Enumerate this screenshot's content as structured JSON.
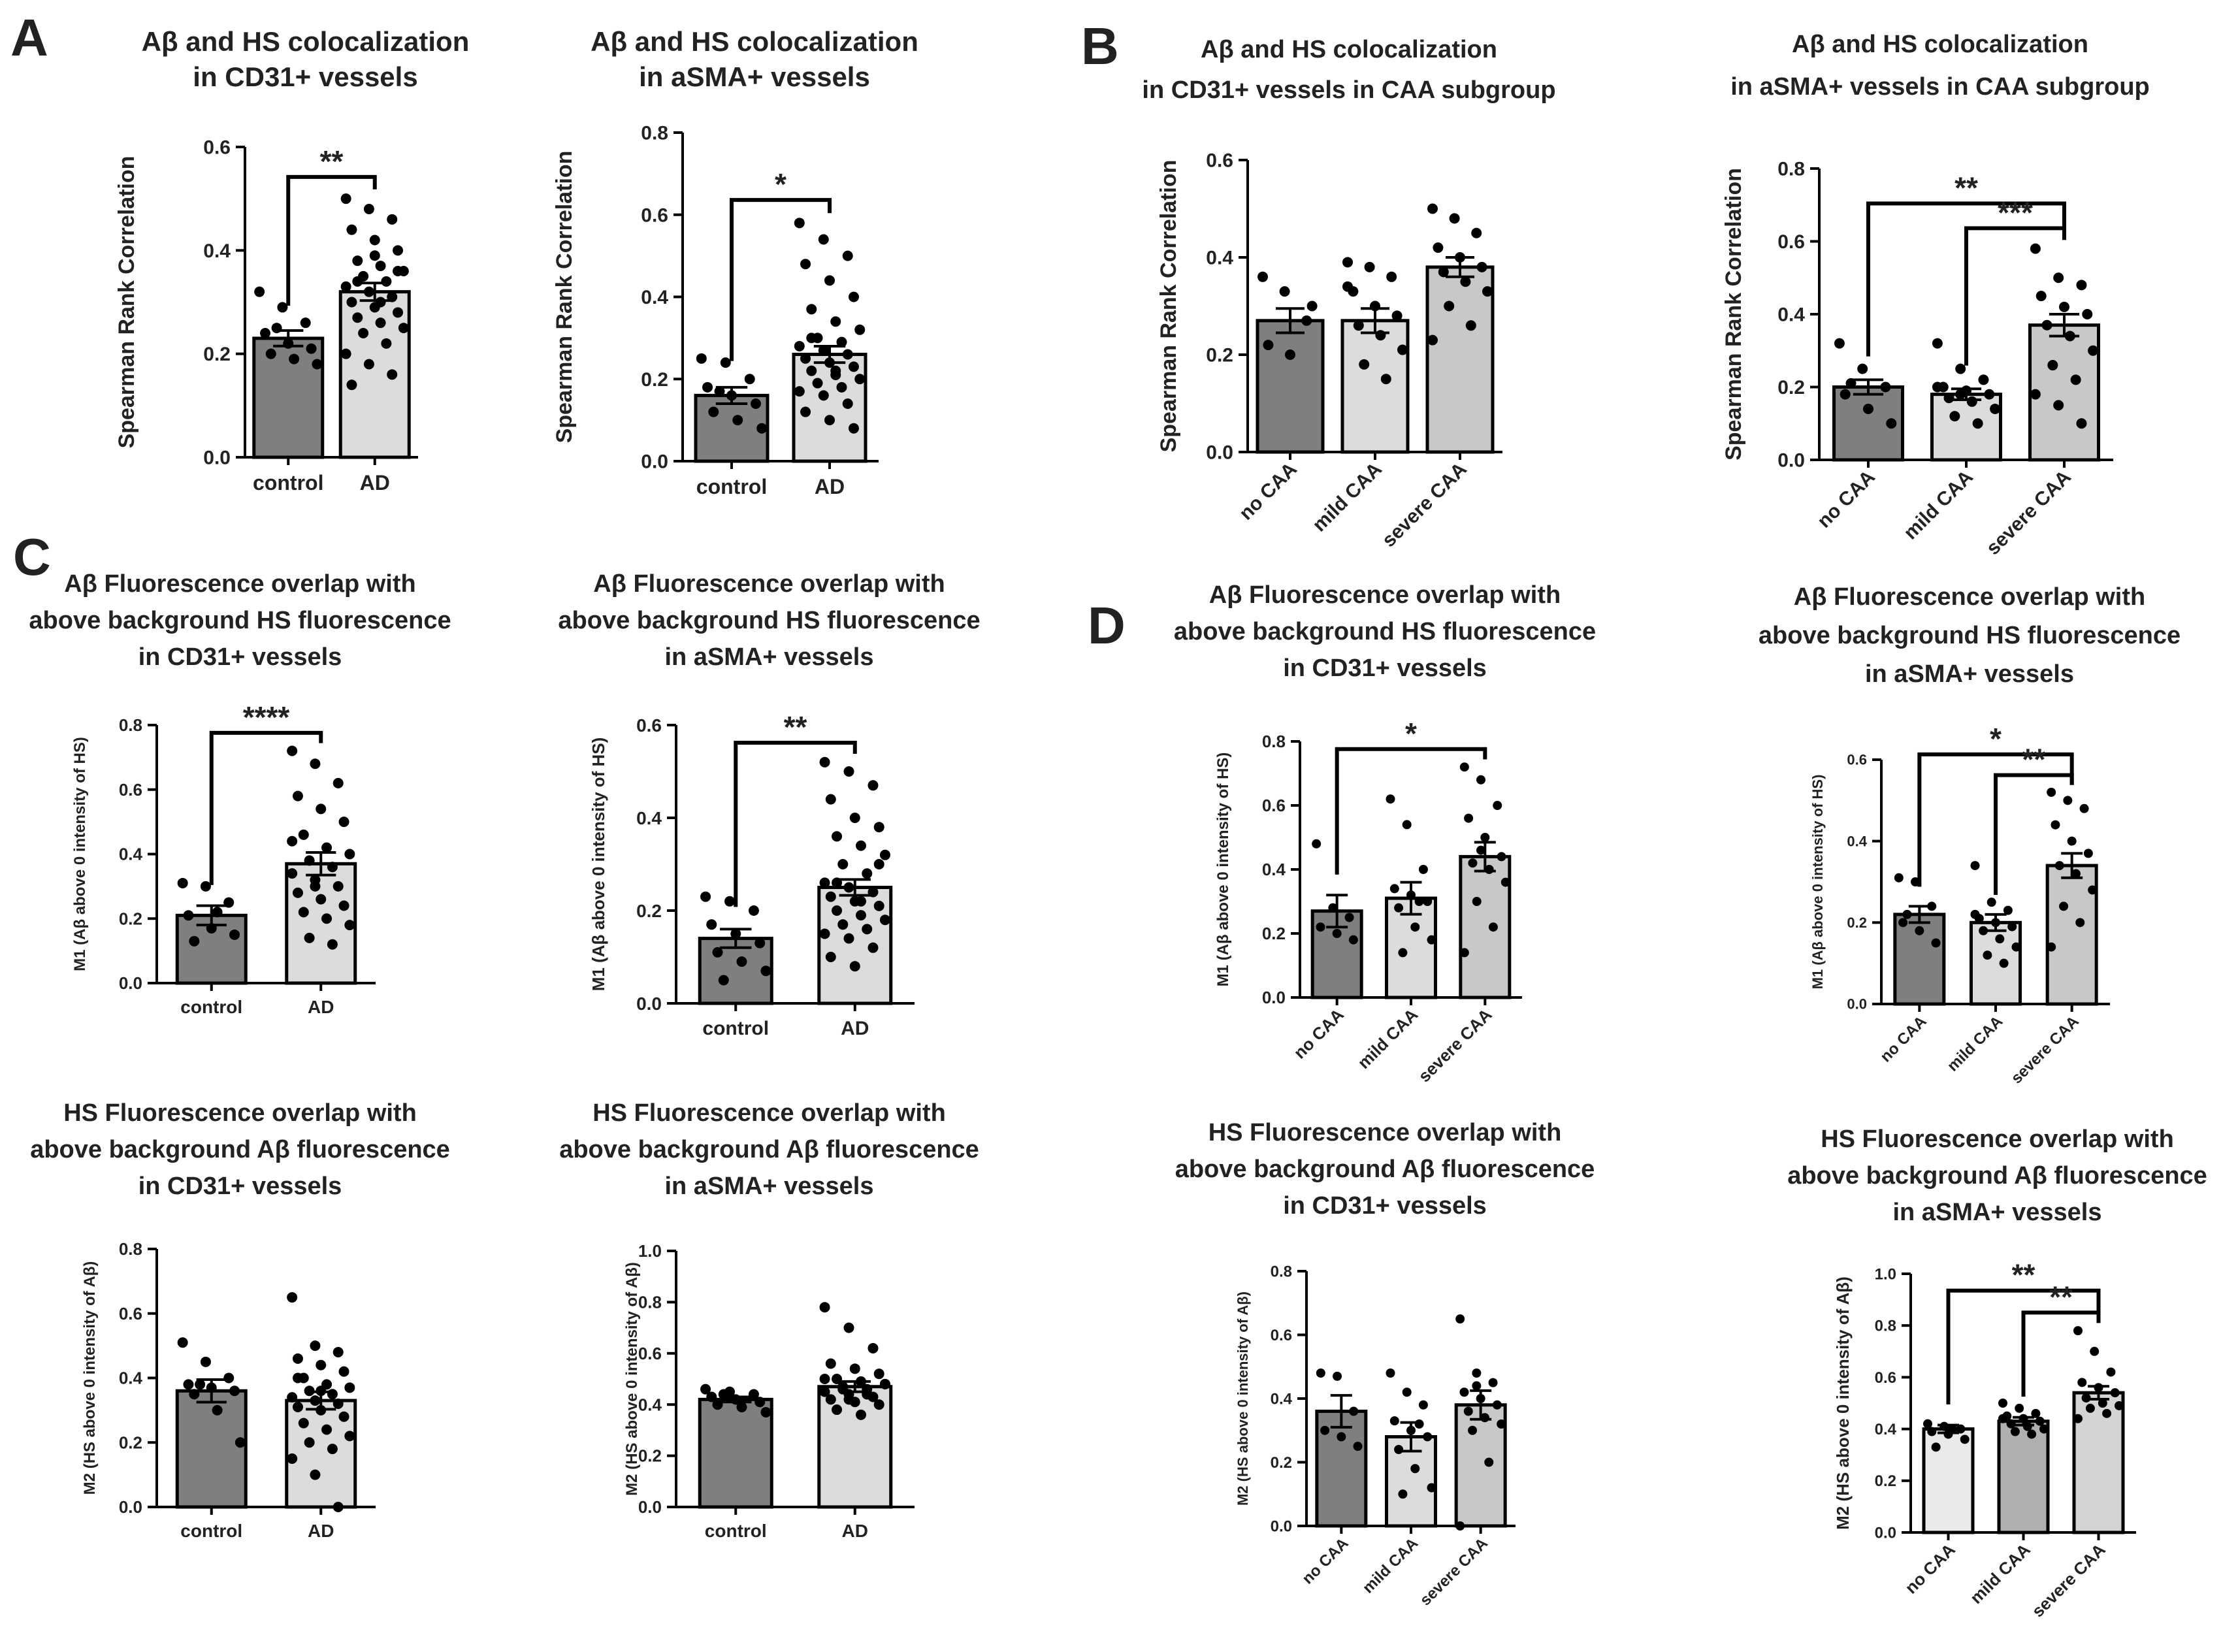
{
  "figure": {
    "panel_labels": [
      "A",
      "B",
      "C",
      "D"
    ]
  },
  "chart_data": [
    {
      "id": "a1",
      "type": "bar",
      "title": [
        "Aβ and HS colocalization",
        "in CD31+ vessels"
      ],
      "ylabel": "Spearman Rank Correlation",
      "categories": [
        "control",
        "AD"
      ],
      "values": [
        0.23,
        0.32
      ],
      "sem": [
        0.015,
        0.017
      ],
      "colors": [
        "#7f7f7f",
        "#dcdcdc"
      ],
      "ylim": [
        0,
        0.6
      ],
      "ticks": [
        0.0,
        0.2,
        0.4,
        0.6
      ],
      "tick_labels": [
        "0.0",
        "0.2",
        "0.4",
        "0.6"
      ],
      "points": [
        [
          0.32,
          0.29,
          0.26,
          0.24,
          0.22,
          0.21,
          0.2,
          0.19,
          0.18,
          0.25
        ],
        [
          0.5,
          0.48,
          0.46,
          0.44,
          0.42,
          0.4,
          0.38,
          0.37,
          0.36,
          0.35,
          0.34,
          0.33,
          0.32,
          0.31,
          0.3,
          0.29,
          0.28,
          0.27,
          0.26,
          0.25,
          0.24,
          0.22,
          0.2,
          0.18,
          0.16,
          0.14,
          0.39,
          0.36,
          0.34,
          0.3
        ]
      ],
      "significance": [
        {
          "from": 0,
          "to": 1,
          "label": "**"
        }
      ]
    },
    {
      "id": "a2",
      "type": "bar",
      "title": [
        "Aβ and HS colocalization",
        "in aSMA+ vessels"
      ],
      "ylabel": "Spearman Rank Correlation",
      "categories": [
        "control",
        "AD"
      ],
      "values": [
        0.16,
        0.26
      ],
      "sem": [
        0.02,
        0.02
      ],
      "colors": [
        "#7f7f7f",
        "#dcdcdc"
      ],
      "ylim": [
        0,
        0.8
      ],
      "ticks": [
        0.0,
        0.2,
        0.4,
        0.6,
        0.8
      ],
      "tick_labels": [
        "0.0",
        "0.2",
        "0.4",
        "0.6",
        "0.8"
      ],
      "points": [
        [
          0.25,
          0.24,
          0.2,
          0.18,
          0.16,
          0.14,
          0.12,
          0.1,
          0.08,
          0.17
        ],
        [
          0.58,
          0.54,
          0.5,
          0.48,
          0.44,
          0.4,
          0.37,
          0.34,
          0.32,
          0.3,
          0.29,
          0.28,
          0.27,
          0.26,
          0.25,
          0.24,
          0.23,
          0.22,
          0.21,
          0.2,
          0.19,
          0.18,
          0.17,
          0.16,
          0.14,
          0.12,
          0.1,
          0.08,
          0.3,
          0.22
        ]
      ],
      "significance": [
        {
          "from": 0,
          "to": 1,
          "label": "*"
        }
      ]
    },
    {
      "id": "b1",
      "type": "bar",
      "title": [
        "Aβ and HS colocalization",
        "in CD31+ vessels in CAA subgroup"
      ],
      "ylabel": "Spearman Rank Correlation",
      "categories": [
        "no CAA",
        "mild CAA",
        "severe CAA"
      ],
      "values": [
        0.27,
        0.27,
        0.38
      ],
      "sem": [
        0.025,
        0.025,
        0.02
      ],
      "colors": [
        "#7f7f7f",
        "#dcdcdc",
        "#c8c8c8"
      ],
      "ylim": [
        0,
        0.6
      ],
      "ticks": [
        0.0,
        0.2,
        0.4,
        0.6
      ],
      "tick_labels": [
        "0.0",
        "0.2",
        "0.4",
        "0.6"
      ],
      "points": [
        [
          0.36,
          0.33,
          0.27,
          0.22,
          0.2,
          0.3
        ],
        [
          0.39,
          0.38,
          0.36,
          0.33,
          0.3,
          0.28,
          0.26,
          0.24,
          0.21,
          0.18,
          0.15,
          0.34
        ],
        [
          0.5,
          0.48,
          0.45,
          0.42,
          0.4,
          0.38,
          0.37,
          0.35,
          0.33,
          0.3,
          0.26,
          0.23
        ]
      ],
      "significance": []
    },
    {
      "id": "b2",
      "type": "bar",
      "title": [
        "Aβ and HS colocalization",
        "in aSMA+ vessels in CAA subgroup"
      ],
      "ylabel": "Spearman Rank Correlation",
      "categories": [
        "no CAA",
        "mild CAA",
        "severe CAA"
      ],
      "values": [
        0.2,
        0.18,
        0.37
      ],
      "sem": [
        0.02,
        0.015,
        0.03
      ],
      "colors": [
        "#7f7f7f",
        "#dcdcdc",
        "#c8c8c8"
      ],
      "ylim": [
        0,
        0.8
      ],
      "ticks": [
        0.0,
        0.2,
        0.4,
        0.6,
        0.8
      ],
      "tick_labels": [
        "0.0",
        "0.2",
        "0.4",
        "0.6",
        "0.8"
      ],
      "points": [
        [
          0.32,
          0.25,
          0.2,
          0.18,
          0.14,
          0.1,
          0.21
        ],
        [
          0.32,
          0.25,
          0.22,
          0.2,
          0.19,
          0.18,
          0.17,
          0.16,
          0.14,
          0.12,
          0.1,
          0.2,
          0.18
        ],
        [
          0.58,
          0.5,
          0.48,
          0.45,
          0.42,
          0.4,
          0.37,
          0.34,
          0.3,
          0.26,
          0.22,
          0.18,
          0.15,
          0.1
        ]
      ],
      "significance": [
        {
          "from": 0,
          "to": 2,
          "label": "**"
        },
        {
          "from": 1,
          "to": 2,
          "label": "***"
        }
      ]
    },
    {
      "id": "c1",
      "type": "bar",
      "title": [
        "Aβ Fluorescence overlap with",
        "above background HS fluorescence",
        "in CD31+ vessels"
      ],
      "ylabel": "M1 (Aβ above 0 intensity of HS)",
      "categories": [
        "control",
        "AD"
      ],
      "values": [
        0.21,
        0.37
      ],
      "sem": [
        0.03,
        0.035
      ],
      "colors": [
        "#7f7f7f",
        "#dcdcdc"
      ],
      "ylim": [
        0,
        0.8
      ],
      "ticks": [
        0.0,
        0.2,
        0.4,
        0.6,
        0.8
      ],
      "tick_labels": [
        "0.0",
        "0.2",
        "0.4",
        "0.6",
        "0.8"
      ],
      "points": [
        [
          0.31,
          0.3,
          0.25,
          0.21,
          0.17,
          0.15,
          0.13,
          0.22
        ],
        [
          0.72,
          0.68,
          0.62,
          0.58,
          0.54,
          0.5,
          0.46,
          0.42,
          0.4,
          0.38,
          0.36,
          0.34,
          0.32,
          0.3,
          0.28,
          0.26,
          0.24,
          0.22,
          0.2,
          0.18,
          0.14,
          0.12,
          0.44,
          0.3
        ]
      ],
      "significance": [
        {
          "from": 0,
          "to": 1,
          "label": "****"
        }
      ]
    },
    {
      "id": "c2",
      "type": "bar",
      "title": [
        "Aβ Fluorescence overlap with",
        "above background HS fluorescence",
        "in aSMA+ vessels"
      ],
      "ylabel": "M1 (Aβ above 0 intensity of HS)",
      "categories": [
        "control",
        "AD"
      ],
      "values": [
        0.14,
        0.25
      ],
      "sem": [
        0.02,
        0.017
      ],
      "colors": [
        "#7f7f7f",
        "#dcdcdc"
      ],
      "ylim": [
        0,
        0.6
      ],
      "ticks": [
        0.0,
        0.2,
        0.4,
        0.6
      ],
      "tick_labels": [
        "0.0",
        "0.2",
        "0.4",
        "0.6"
      ],
      "points": [
        [
          0.23,
          0.22,
          0.2,
          0.17,
          0.15,
          0.13,
          0.11,
          0.09,
          0.07,
          0.05
        ],
        [
          0.52,
          0.5,
          0.47,
          0.44,
          0.4,
          0.38,
          0.36,
          0.34,
          0.32,
          0.3,
          0.28,
          0.26,
          0.25,
          0.24,
          0.23,
          0.22,
          0.21,
          0.2,
          0.19,
          0.18,
          0.17,
          0.16,
          0.15,
          0.14,
          0.12,
          0.1,
          0.08,
          0.3,
          0.26,
          0.22
        ]
      ],
      "significance": [
        {
          "from": 0,
          "to": 1,
          "label": "**"
        }
      ]
    },
    {
      "id": "c3",
      "type": "bar",
      "title": [
        "HS Fluorescence overlap with",
        "above background Aβ fluorescence",
        "in CD31+ vessels"
      ],
      "ylabel": "M2 (HS above 0 intensity of Aβ)",
      "categories": [
        "control",
        "AD"
      ],
      "values": [
        0.36,
        0.33
      ],
      "sem": [
        0.035,
        0.027
      ],
      "colors": [
        "#7f7f7f",
        "#dcdcdc"
      ],
      "ylim": [
        0,
        0.8
      ],
      "ticks": [
        0.0,
        0.2,
        0.4,
        0.6,
        0.8
      ],
      "tick_labels": [
        "0.0",
        "0.2",
        "0.4",
        "0.6",
        "0.8"
      ],
      "points": [
        [
          0.51,
          0.45,
          0.4,
          0.38,
          0.37,
          0.36,
          0.35,
          0.3,
          0.2,
          0.38
        ],
        [
          0.65,
          0.5,
          0.48,
          0.46,
          0.44,
          0.42,
          0.4,
          0.38,
          0.37,
          0.36,
          0.35,
          0.34,
          0.33,
          0.32,
          0.31,
          0.3,
          0.28,
          0.26,
          0.24,
          0.22,
          0.2,
          0.18,
          0.15,
          0.1,
          0.0,
          0.4,
          0.36
        ]
      ],
      "significance": []
    },
    {
      "id": "c4",
      "type": "bar",
      "title": [
        "HS Fluorescence overlap with",
        "above background Aβ fluorescence",
        "in aSMA+ vessels"
      ],
      "ylabel": "M2 (HS above 0 intensity of Aβ)",
      "categories": [
        "control",
        "AD"
      ],
      "values": [
        0.42,
        0.47
      ],
      "sem": [
        0.01,
        0.02
      ],
      "colors": [
        "#7f7f7f",
        "#dcdcdc"
      ],
      "ylim": [
        0,
        1.0
      ],
      "ticks": [
        0.0,
        0.2,
        0.4,
        0.6,
        0.8,
        1.0
      ],
      "tick_labels": [
        "0.0",
        "0.2",
        "0.4",
        "0.6",
        "0.8",
        "1.0"
      ],
      "points": [
        [
          0.46,
          0.45,
          0.44,
          0.43,
          0.42,
          0.41,
          0.4,
          0.39,
          0.37,
          0.44
        ],
        [
          0.78,
          0.7,
          0.62,
          0.56,
          0.54,
          0.52,
          0.5,
          0.49,
          0.48,
          0.47,
          0.46,
          0.45,
          0.44,
          0.43,
          0.42,
          0.41,
          0.4,
          0.38,
          0.36,
          0.48,
          0.46,
          0.44,
          0.5,
          0.42
        ]
      ],
      "significance": []
    },
    {
      "id": "d1",
      "type": "bar",
      "title": [
        "Aβ Fluorescence overlap with",
        "above background HS fluorescence",
        "in CD31+ vessels"
      ],
      "ylabel": "M1 (Aβ above 0 intensity of HS)",
      "categories": [
        "no CAA",
        "mild CAA",
        "severe CAA"
      ],
      "values": [
        0.27,
        0.31,
        0.44
      ],
      "sem": [
        0.05,
        0.05,
        0.045
      ],
      "colors": [
        "#7f7f7f",
        "#dcdcdc",
        "#c8c8c8"
      ],
      "ylim": [
        0,
        0.8
      ],
      "ticks": [
        0.0,
        0.2,
        0.4,
        0.6,
        0.8
      ],
      "tick_labels": [
        "0.0",
        "0.2",
        "0.4",
        "0.6",
        "0.8"
      ],
      "points": [
        [
          0.48,
          0.28,
          0.25,
          0.22,
          0.2,
          0.18
        ],
        [
          0.62,
          0.54,
          0.4,
          0.34,
          0.32,
          0.3,
          0.28,
          0.22,
          0.18,
          0.14,
          0.3
        ],
        [
          0.72,
          0.68,
          0.6,
          0.56,
          0.5,
          0.44,
          0.42,
          0.4,
          0.36,
          0.3,
          0.22,
          0.14,
          0.46
        ]
      ],
      "significance": [
        {
          "from": 0,
          "to": 2,
          "label": "*"
        }
      ]
    },
    {
      "id": "d2",
      "type": "bar",
      "title": [
        "Aβ Fluorescence overlap with",
        "above background HS fluorescence",
        "in aSMA+ vessels"
      ],
      "ylabel": "M1 (Aβ above 0 intensity of HS)",
      "categories": [
        "no CAA",
        "mild CAA",
        "severe CAA"
      ],
      "values": [
        0.22,
        0.2,
        0.34
      ],
      "sem": [
        0.02,
        0.02,
        0.03
      ],
      "colors": [
        "#7f7f7f",
        "#dcdcdc",
        "#c8c8c8"
      ],
      "ylim": [
        0,
        0.6
      ],
      "ticks": [
        0.0,
        0.2,
        0.4,
        0.6
      ],
      "tick_labels": [
        "0.0",
        "0.2",
        "0.4",
        "0.6"
      ],
      "points": [
        [
          0.31,
          0.3,
          0.24,
          0.2,
          0.18,
          0.15,
          0.22
        ],
        [
          0.34,
          0.25,
          0.23,
          0.21,
          0.2,
          0.19,
          0.18,
          0.16,
          0.14,
          0.12,
          0.1,
          0.22
        ],
        [
          0.52,
          0.5,
          0.48,
          0.44,
          0.4,
          0.37,
          0.34,
          0.32,
          0.28,
          0.24,
          0.2,
          0.14
        ]
      ],
      "significance": [
        {
          "from": 0,
          "to": 2,
          "label": "*"
        },
        {
          "from": 1,
          "to": 2,
          "label": "**"
        }
      ]
    },
    {
      "id": "d3",
      "type": "bar",
      "title": [
        "HS Fluorescence overlap with",
        "above background Aβ fluorescence",
        "in CD31+ vessels"
      ],
      "ylabel": "M2 (HS above 0 intensity of Aβ)",
      "categories": [
        "no CAA",
        "mild CAA",
        "severe CAA"
      ],
      "values": [
        0.36,
        0.28,
        0.38
      ],
      "sem": [
        0.05,
        0.045,
        0.045
      ],
      "colors": [
        "#7f7f7f",
        "#dcdcdc",
        "#c8c8c8"
      ],
      "ylim": [
        0,
        0.8
      ],
      "ticks": [
        0.0,
        0.2,
        0.4,
        0.6,
        0.8
      ],
      "tick_labels": [
        "0.0",
        "0.2",
        "0.4",
        "0.6",
        "0.8"
      ],
      "points": [
        [
          0.48,
          0.47,
          0.36,
          0.3,
          0.28,
          0.25
        ],
        [
          0.48,
          0.42,
          0.38,
          0.33,
          0.3,
          0.28,
          0.24,
          0.18,
          0.12,
          0.1,
          0.32
        ],
        [
          0.65,
          0.48,
          0.45,
          0.42,
          0.4,
          0.38,
          0.36,
          0.34,
          0.32,
          0.3,
          0.2,
          0.0,
          0.44
        ]
      ],
      "significance": []
    },
    {
      "id": "d4",
      "type": "bar",
      "title": [
        "HS Fluorescence overlap with",
        "above background Aβ fluorescence",
        "in aSMA+ vessels"
      ],
      "ylabel": "M2 (HS above 0 intensity of Aβ)",
      "categories": [
        "no CAA",
        "mild CAA",
        "severe CAA"
      ],
      "values": [
        0.4,
        0.43,
        0.54
      ],
      "sem": [
        0.015,
        0.015,
        0.025
      ],
      "colors": [
        "#eaeaea",
        "#b0b0b0",
        "#d4d4d4"
      ],
      "ylim": [
        0,
        1.0
      ],
      "ticks": [
        0.0,
        0.2,
        0.4,
        0.6,
        0.8,
        1.0
      ],
      "tick_labels": [
        "0.0",
        "0.2",
        "0.4",
        "0.6",
        "0.8",
        "1.0"
      ],
      "points": [
        [
          0.42,
          0.41,
          0.4,
          0.39,
          0.38,
          0.36,
          0.33,
          0.4
        ],
        [
          0.5,
          0.48,
          0.46,
          0.45,
          0.44,
          0.43,
          0.42,
          0.41,
          0.4,
          0.39,
          0.38,
          0.44
        ],
        [
          0.78,
          0.7,
          0.62,
          0.58,
          0.56,
          0.54,
          0.52,
          0.5,
          0.49,
          0.48,
          0.46,
          0.44
        ]
      ],
      "significance": [
        {
          "from": 0,
          "to": 2,
          "label": "**"
        },
        {
          "from": 1,
          "to": 2,
          "label": "**"
        }
      ]
    }
  ]
}
